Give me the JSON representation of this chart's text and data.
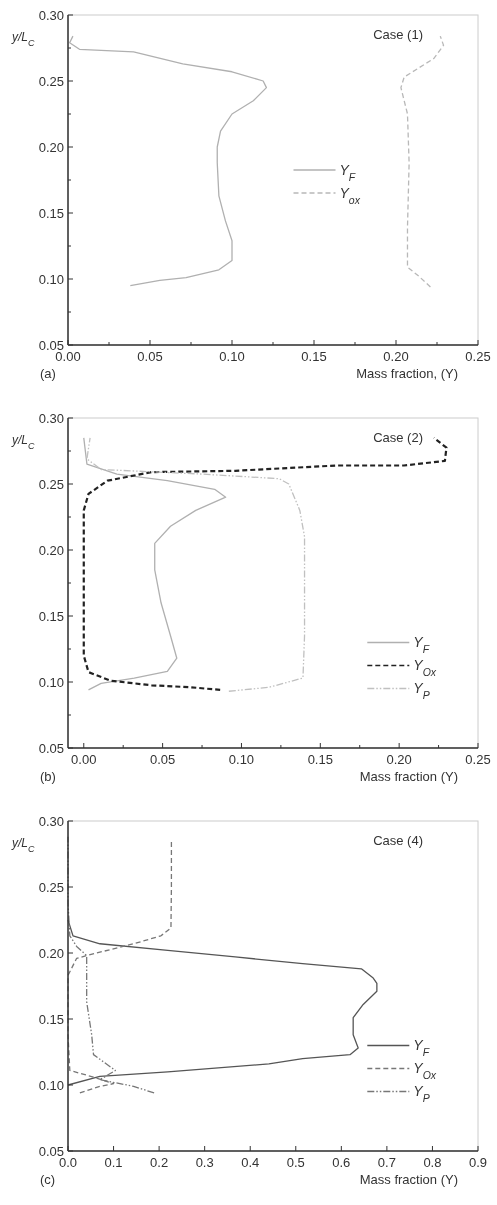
{
  "chart_data": [
    {
      "type": "line",
      "annotations": [
        "Case (1)",
        "(a)"
      ],
      "xlabel": "Mass fraction, (Y)",
      "ylabel": "y/L$_{C}$",
      "xlim": [
        0,
        0.25
      ],
      "ylim": [
        0.05,
        0.3
      ],
      "xticks": [
        {
          "value": 0,
          "label": "0.00"
        },
        {
          "value": 0.025,
          "label": null
        },
        {
          "value": 0.05,
          "label": "0.05"
        },
        {
          "value": 0.075,
          "label": null
        },
        {
          "value": 0.1,
          "label": "0.10"
        },
        {
          "value": 0.125,
          "label": null
        },
        {
          "value": 0.15,
          "label": "0.15"
        },
        {
          "value": 0.175,
          "label": null
        },
        {
          "value": 0.2,
          "label": "0.20"
        },
        {
          "value": 0.225,
          "label": null
        },
        {
          "value": 0.25,
          "label": "0.25"
        }
      ],
      "yticks": [
        {
          "value": 0.05,
          "label": "0.05"
        },
        {
          "value": 0.075,
          "label": null
        },
        {
          "value": 0.1,
          "label": "0.10"
        },
        {
          "value": 0.125,
          "label": null
        },
        {
          "value": 0.15,
          "label": "0.15"
        },
        {
          "value": 0.175,
          "label": null
        },
        {
          "value": 0.2,
          "label": "0.20"
        },
        {
          "value": 0.225,
          "label": null
        },
        {
          "value": 0.25,
          "label": "0.25"
        },
        {
          "value": 0.275,
          "label": null
        },
        {
          "value": 0.3,
          "label": "0.30"
        }
      ],
      "legend": "right",
      "series": [
        {
          "name": "Y$_{F}$",
          "color": "#b0b0b0",
          "line_style": "solid",
          "x": [
            0.038,
            0.056,
            0.072,
            0.092,
            0.1,
            0.1,
            0.096,
            0.092,
            0.091,
            0.091,
            0.093,
            0.1,
            0.113,
            0.121,
            0.119,
            0.1,
            0.07,
            0.04,
            0.007,
            0.001,
            0.003
          ],
          "values": [
            0.095,
            0.099,
            0.101,
            0.107,
            0.114,
            0.129,
            0.144,
            0.163,
            0.188,
            0.2,
            0.212,
            0.225,
            0.235,
            0.245,
            0.25,
            0.257,
            0.263,
            0.272,
            0.274,
            0.279,
            0.284
          ]
        },
        {
          "name": "Y$_{ox}$",
          "color": "#b8b8b8",
          "line_style": "dashed",
          "x": [
            0.221,
            0.214,
            0.207,
            0.207,
            0.208,
            0.207,
            0.203,
            0.205,
            0.223,
            0.229,
            0.227
          ],
          "values": [
            0.094,
            0.102,
            0.109,
            0.139,
            0.188,
            0.225,
            0.245,
            0.253,
            0.267,
            0.277,
            0.284
          ]
        }
      ]
    },
    {
      "type": "line",
      "annotations": [
        "Case (2)",
        "(b)"
      ],
      "xlabel": "Mass fraction (Y)",
      "ylabel": "y/L$_{C}$",
      "xlim": [
        -0.01,
        0.25
      ],
      "ylim": [
        0.05,
        0.3
      ],
      "xticks": [
        {
          "value": 0,
          "label": "0.00"
        },
        {
          "value": 0.025,
          "label": null
        },
        {
          "value": 0.05,
          "label": "0.05"
        },
        {
          "value": 0.075,
          "label": null
        },
        {
          "value": 0.1,
          "label": "0.10"
        },
        {
          "value": 0.125,
          "label": null
        },
        {
          "value": 0.15,
          "label": "0.15"
        },
        {
          "value": 0.175,
          "label": null
        },
        {
          "value": 0.2,
          "label": "0.20"
        },
        {
          "value": 0.225,
          "label": null
        },
        {
          "value": 0.25,
          "label": "0.25"
        }
      ],
      "yticks": [
        {
          "value": 0.05,
          "label": "0.05"
        },
        {
          "value": 0.075,
          "label": null
        },
        {
          "value": 0.1,
          "label": "0.10"
        },
        {
          "value": 0.125,
          "label": null
        },
        {
          "value": 0.15,
          "label": "0.15"
        },
        {
          "value": 0.175,
          "label": null
        },
        {
          "value": 0.2,
          "label": "0.20"
        },
        {
          "value": 0.225,
          "label": null
        },
        {
          "value": 0.25,
          "label": "0.25"
        },
        {
          "value": 0.275,
          "label": null
        },
        {
          "value": 0.3,
          "label": "0.30"
        }
      ],
      "legend": "bottom right",
      "series": [
        {
          "name": "Y$_{F}$",
          "color": "#b0b0b0",
          "line_style": "solid",
          "x": [
            0.003,
            0.011,
            0.032,
            0.053,
            0.059,
            0.055,
            0.049,
            0.045,
            0.045,
            0.055,
            0.071,
            0.09,
            0.083,
            0.053,
            0.021,
            0.002,
            0
          ],
          "values": [
            0.094,
            0.099,
            0.103,
            0.108,
            0.118,
            0.135,
            0.16,
            0.185,
            0.205,
            0.218,
            0.23,
            0.24,
            0.246,
            0.2525,
            0.2575,
            0.265,
            0.285
          ]
        },
        {
          "name": "Y$_{Ox}$",
          "color": "#222222",
          "line_style": "dashed",
          "x": [
            0.0865,
            0.068,
            0.043,
            0.017,
            0.003,
            0,
            0,
            0,
            0.003,
            0.015,
            0.043,
            0.096,
            0.16,
            0.203,
            0.229,
            0.23,
            0.222
          ],
          "values": [
            0.094,
            0.096,
            0.0975,
            0.101,
            0.1075,
            0.12,
            0.185,
            0.23,
            0.2425,
            0.2525,
            0.259,
            0.26,
            0.264,
            0.264,
            0.2675,
            0.2775,
            0.285
          ]
        },
        {
          "name": "Y$_{P}$",
          "color": "#c0c0c0",
          "line_style": "dashdot",
          "x": [
            0.092,
            0.1175,
            0.139,
            0.14,
            0.14,
            0.137,
            0.13,
            0.124,
            0.075,
            0.011,
            0.002,
            0.004
          ],
          "values": [
            0.093,
            0.096,
            0.103,
            0.135,
            0.21,
            0.23,
            0.25,
            0.254,
            0.2575,
            0.261,
            0.269,
            0.285
          ]
        }
      ]
    },
    {
      "type": "line",
      "annotations": [
        "Case (4)",
        "(c)"
      ],
      "xlabel": "Mass fraction (Y)",
      "ylabel": "y/L$_{C}$",
      "xlim": [
        0,
        0.9
      ],
      "ylim": [
        0.05,
        0.3
      ],
      "xticks": [
        {
          "value": 0,
          "label": "0.0"
        },
        {
          "value": 0.1,
          "label": "0.1"
        },
        {
          "value": 0.2,
          "label": "0.2"
        },
        {
          "value": 0.3,
          "label": "0.3"
        },
        {
          "value": 0.4,
          "label": "0.4"
        },
        {
          "value": 0.5,
          "label": "0.5"
        },
        {
          "value": 0.6,
          "label": "0.6"
        },
        {
          "value": 0.7,
          "label": "0.7"
        },
        {
          "value": 0.8,
          "label": "0.8"
        },
        {
          "value": 0.9,
          "label": "0.9"
        }
      ],
      "yticks": [
        {
          "value": 0.05,
          "label": "0.05"
        },
        {
          "value": 0.1,
          "label": "0.10"
        },
        {
          "value": 0.15,
          "label": "0.15"
        },
        {
          "value": 0.2,
          "label": "0.20"
        },
        {
          "value": 0.25,
          "label": "0.25"
        },
        {
          "value": 0.3,
          "label": "0.30"
        }
      ],
      "legend": "bottom right",
      "series": [
        {
          "name": "Y$_{F}$",
          "color": "#555555",
          "line_style": "solid",
          "x": [
            0,
            0.07,
            0.219,
            0.441,
            0.515,
            0.619,
            0.637,
            0.626,
            0.626,
            0.648,
            0.678,
            0.678,
            0.67,
            0.644,
            0.515,
            0.367,
            0.219,
            0.07,
            0.011,
            0
          ],
          "values": [
            0.1,
            0.1065,
            0.11,
            0.116,
            0.12,
            0.123,
            0.128,
            0.138,
            0.151,
            0.161,
            0.171,
            0.177,
            0.181,
            0.188,
            0.192,
            0.197,
            0.202,
            0.207,
            0.213,
            0.225
          ]
        },
        {
          "name": "Y$_{Ox}$",
          "color": "#777777",
          "line_style": "dashed",
          "x": [
            0.026,
            0.07,
            0.1,
            0.056,
            0.004,
            0,
            0,
            0.019,
            0.063,
            0.144,
            0.204,
            0.226,
            0.227,
            0.227
          ],
          "values": [
            0.094,
            0.099,
            0.101,
            0.106,
            0.111,
            0.138,
            0.183,
            0.196,
            0.2,
            0.207,
            0.213,
            0.219,
            0.25,
            0.284
          ]
        },
        {
          "name": "Y$_{P}$",
          "color": "#777777",
          "line_style": "dashdot",
          "x": [
            0.189,
            0.144,
            0.07,
            0.104,
            0.056,
            0.052,
            0.041,
            0.041,
            0.019,
            0.004,
            0,
            0
          ],
          "values": [
            0.094,
            0.099,
            0.104,
            0.111,
            0.123,
            0.138,
            0.163,
            0.198,
            0.205,
            0.213,
            0.238,
            0.288
          ]
        }
      ]
    }
  ]
}
